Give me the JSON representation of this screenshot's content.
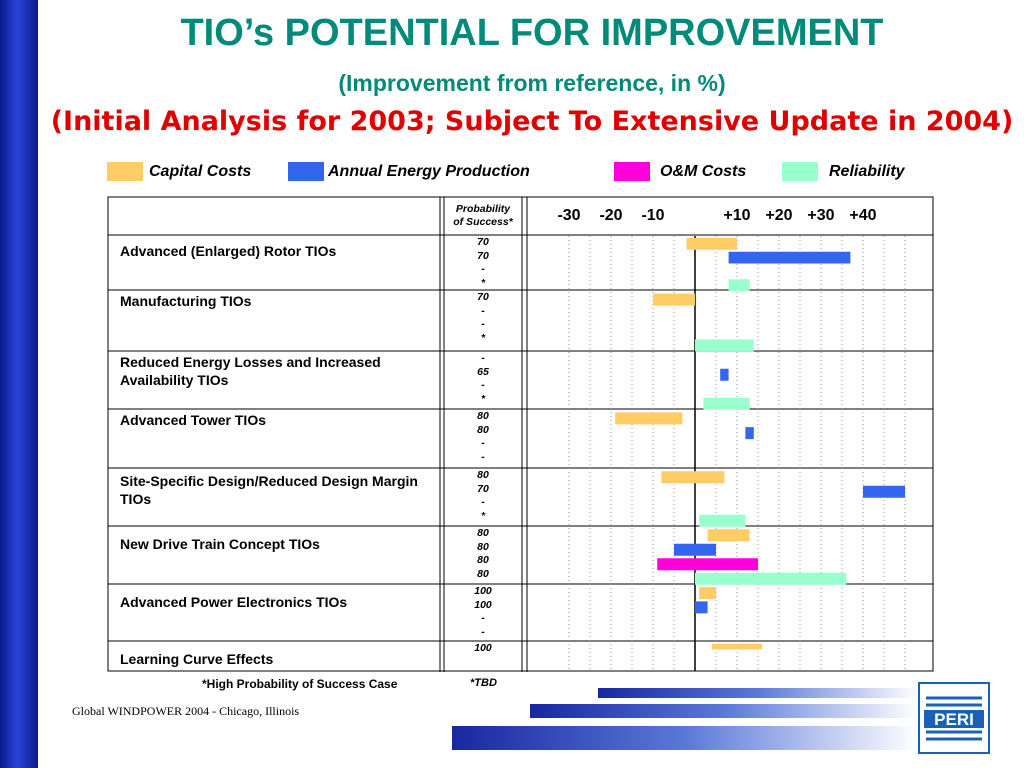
{
  "title": "TIO’s POTENTIAL FOR IMPROVEMENT",
  "subtitle": "(Improvement from reference, in %)",
  "note": "(Initial Analysis for 2003; Subject To Extensive Update in 2004)",
  "legend": [
    {
      "label": "Capital Costs",
      "color": "#ffcc66"
    },
    {
      "label": "Annual Energy Production",
      "color": "#3366ee"
    },
    {
      "label": "O&M Costs",
      "color": "#ff00dd"
    },
    {
      "label": "Reliability",
      "color": "#99ffcc"
    }
  ],
  "prob_header": [
    "Probability",
    "of Success*"
  ],
  "footnote": "*High Probability of Success Case",
  "tbd": "*TBD",
  "footer": "Global WINDPOWER 2004 - Chicago, Illinois",
  "logo_text": "PERI",
  "chart_data": {
    "type": "bar",
    "orientation": "horizontal",
    "x_tick_labels": [
      "-30",
      "-20",
      "-10",
      "+10",
      "+20",
      "+30",
      "+40"
    ],
    "x_ticks": [
      -30,
      -20,
      -10,
      10,
      20,
      30,
      40
    ],
    "xlim": [
      -40,
      55
    ],
    "categories": [
      "Advanced (Enlarged) Rotor TIOs",
      "Manufacturing TIOs",
      "Reduced Energy Losses and Increased Availability TIOs",
      "Advanced Tower TIOs",
      "Site-Specific Design/Reduced Design Margin TIOs",
      "New Drive Train Concept TIOs",
      "Advanced Power Electronics TIOs",
      "Learning Curve Effects"
    ],
    "probability": [
      [
        "70",
        "70",
        "-",
        "*"
      ],
      [
        "70",
        "-",
        "-",
        "*"
      ],
      [
        "-",
        "65",
        "-",
        "*"
      ],
      [
        "80",
        "80",
        "-",
        "-"
      ],
      [
        "80",
        "70",
        "-",
        "*"
      ],
      [
        "80",
        "80",
        "80",
        "80"
      ],
      [
        "100",
        "100",
        "-",
        "-"
      ],
      [
        "100"
      ]
    ],
    "series": [
      {
        "name": "Capital Costs",
        "color": "#ffcc66",
        "ranges": [
          [
            -2,
            10
          ],
          [
            -10,
            0
          ],
          null,
          [
            -19,
            -3
          ],
          [
            -8,
            7
          ],
          [
            3,
            13
          ],
          [
            1,
            5
          ],
          [
            4,
            16
          ]
        ]
      },
      {
        "name": "Annual Energy Production",
        "color": "#3366ee",
        "ranges": [
          [
            8,
            37
          ],
          null,
          [
            6,
            8
          ],
          [
            12,
            14
          ],
          [
            40,
            50
          ],
          [
            -5,
            5
          ],
          [
            0,
            3
          ],
          null
        ]
      },
      {
        "name": "O&M Costs",
        "color": "#ff00dd",
        "ranges": [
          null,
          null,
          null,
          null,
          null,
          [
            -9,
            15
          ],
          null,
          null
        ]
      },
      {
        "name": "Reliability",
        "color": "#99ffcc",
        "ranges": [
          [
            8,
            13
          ],
          [
            0,
            14
          ],
          [
            2,
            13
          ],
          null,
          [
            1,
            12
          ],
          [
            0,
            36
          ],
          null,
          null
        ]
      }
    ]
  }
}
